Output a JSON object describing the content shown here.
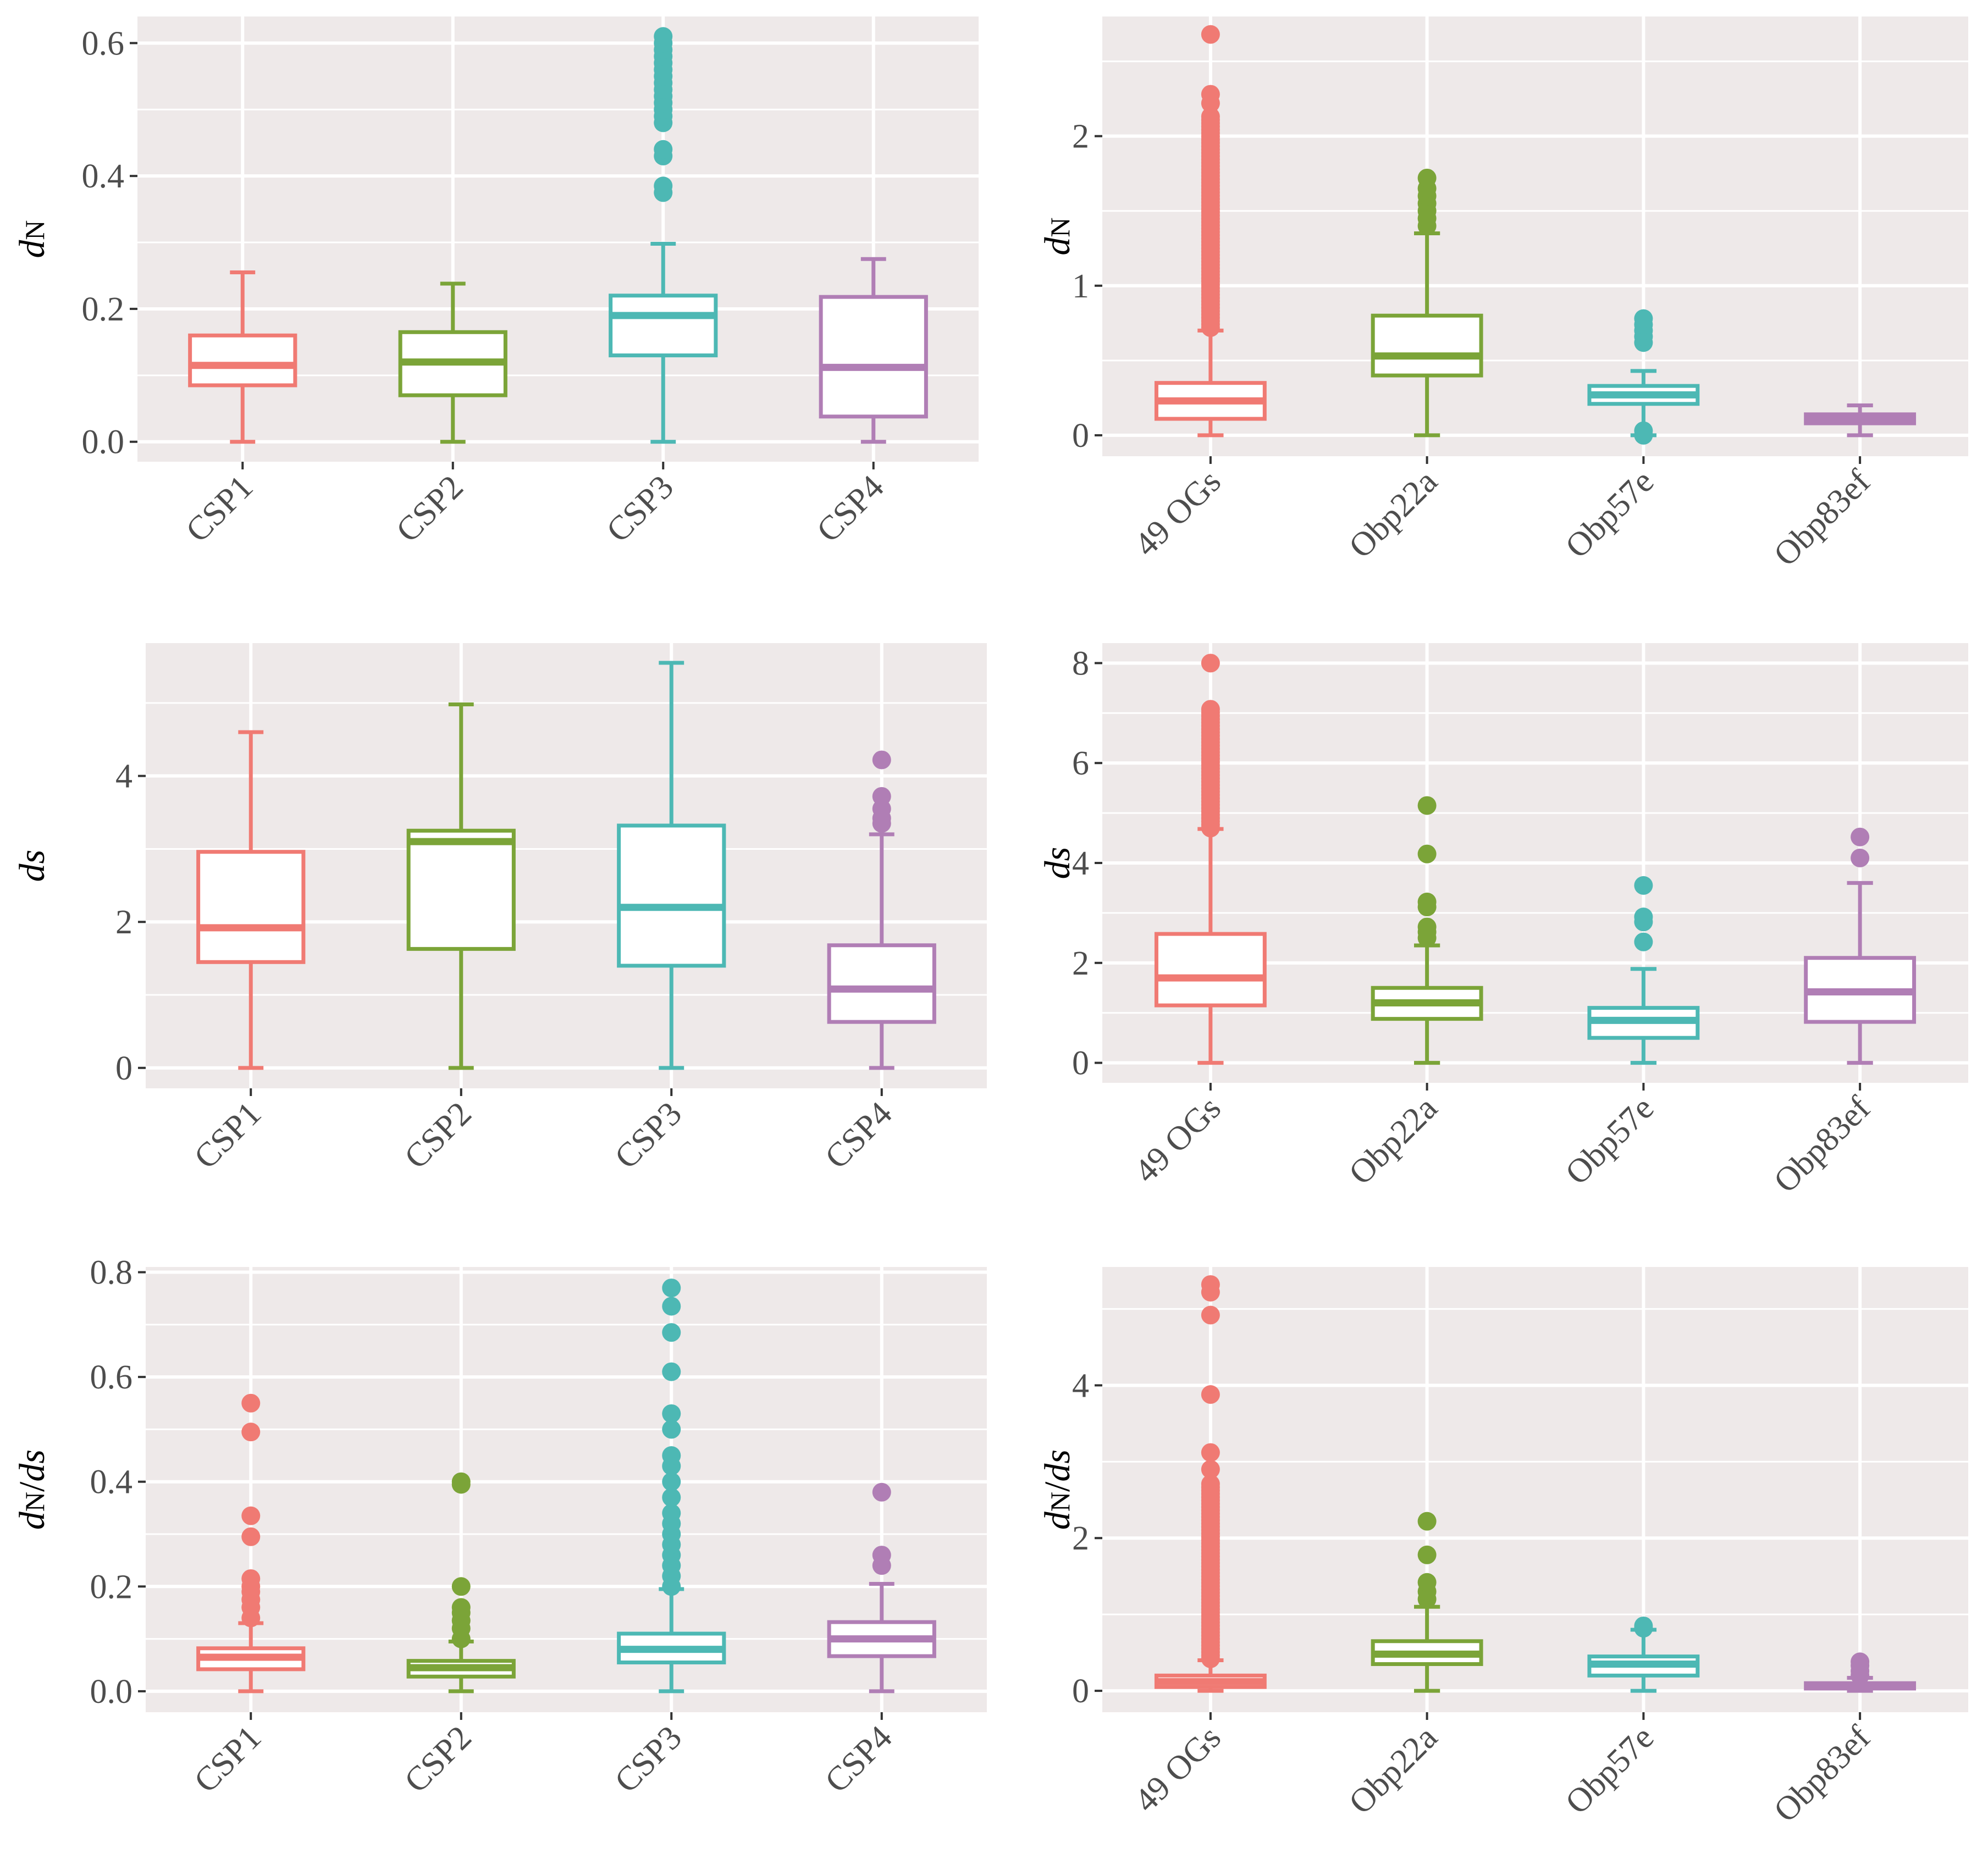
{
  "chart_data": [
    {
      "type": "boxplot",
      "panel": "top-left",
      "ylabel": "dN",
      "ylabel_parts": [
        {
          "text": "d",
          "style": "italic"
        },
        {
          "text": "N",
          "style": "sub"
        }
      ],
      "ylim": [
        -0.03,
        0.64
      ],
      "yticks": [
        0.0,
        0.2,
        0.4,
        0.6
      ],
      "ytick_labels": [
        "0.0",
        "0.2",
        "0.4",
        "0.6"
      ],
      "categories": [
        "CSP1",
        "CSP2",
        "CSP3",
        "CSP4"
      ],
      "colors": [
        "#F07A73",
        "#7BA438",
        "#4DB8B4",
        "#B07EB5"
      ],
      "boxes": [
        {
          "min": 0.0,
          "q1": 0.085,
          "median": 0.115,
          "q3": 0.16,
          "max": 0.255,
          "outliers": []
        },
        {
          "min": 0.0,
          "q1": 0.07,
          "median": 0.12,
          "q3": 0.165,
          "max": 0.238,
          "outliers": []
        },
        {
          "min": 0.0,
          "q1": 0.13,
          "median": 0.19,
          "q3": 0.22,
          "max": 0.298,
          "outliers": [
            0.375,
            0.385,
            0.43,
            0.44,
            0.48,
            0.49,
            0.5,
            0.51,
            0.52,
            0.53,
            0.54,
            0.55,
            0.56,
            0.57,
            0.58,
            0.59,
            0.6,
            0.61
          ]
        },
        {
          "min": 0.0,
          "q1": 0.038,
          "median": 0.112,
          "q3": 0.218,
          "max": 0.275,
          "outliers": []
        }
      ]
    },
    {
      "type": "boxplot",
      "panel": "top-right",
      "ylabel": "dN",
      "ylabel_parts": [
        {
          "text": "d",
          "style": "italic"
        },
        {
          "text": "N",
          "style": "sub"
        }
      ],
      "ylim": [
        -0.14,
        2.8
      ],
      "yticks": [
        0,
        1,
        2
      ],
      "ytick_labels": [
        "0",
        "1",
        "2"
      ],
      "categories": [
        "49 OGs",
        "Obp22a",
        "Obp57e",
        "Obp83ef"
      ],
      "colors": [
        "#F07A73",
        "#7BA438",
        "#4DB8B4",
        "#B07EB5"
      ],
      "boxes": [
        {
          "min": 0.0,
          "q1": 0.11,
          "median": 0.23,
          "q3": 0.35,
          "max": 0.7,
          "outliers": {
            "range": [
              0.72,
              2.15
            ],
            "extra": [
              2.22,
              2.28,
              2.68
            ]
          }
        },
        {
          "min": 0.0,
          "q1": 0.4,
          "median": 0.53,
          "q3": 0.8,
          "max": 1.35,
          "outliers": [
            1.4,
            1.45,
            1.5,
            1.55,
            1.6,
            1.65,
            1.72
          ]
        },
        {
          "min": 0.0,
          "q1": 0.21,
          "median": 0.27,
          "q3": 0.33,
          "max": 0.43,
          "outliers": [
            0.0,
            0.03,
            0.62,
            0.66,
            0.7,
            0.74,
            0.78
          ]
        },
        {
          "min": 0.0,
          "q1": 0.08,
          "median": 0.11,
          "q3": 0.14,
          "max": 0.2,
          "outliers": []
        }
      ]
    },
    {
      "type": "boxplot",
      "panel": "middle-left",
      "ylabel": "ds",
      "ylabel_parts": [
        {
          "text": "d",
          "style": "italic"
        },
        {
          "text": "s",
          "style": "italic"
        }
      ],
      "ylim": [
        -0.28,
        5.82
      ],
      "yticks": [
        0,
        2,
        4
      ],
      "ytick_labels": [
        "0",
        "2",
        "4"
      ],
      "categories": [
        "CSP1",
        "CSP2",
        "CSP3",
        "CSP4"
      ],
      "colors": [
        "#F07A73",
        "#7BA438",
        "#4DB8B4",
        "#B07EB5"
      ],
      "boxes": [
        {
          "min": 0.0,
          "q1": 1.45,
          "median": 1.92,
          "q3": 2.96,
          "max": 4.6,
          "outliers": []
        },
        {
          "min": 0.0,
          "q1": 1.63,
          "median": 3.1,
          "q3": 3.25,
          "max": 4.98,
          "outliers": []
        },
        {
          "min": 0.0,
          "q1": 1.4,
          "median": 2.2,
          "q3": 3.32,
          "max": 5.55,
          "outliers": []
        },
        {
          "min": 0.0,
          "q1": 0.63,
          "median": 1.08,
          "q3": 1.68,
          "max": 3.2,
          "outliers": [
            3.35,
            3.42,
            3.55,
            3.72,
            4.22
          ]
        }
      ]
    },
    {
      "type": "boxplot",
      "panel": "middle-right",
      "ylabel": "ds",
      "ylabel_parts": [
        {
          "text": "d",
          "style": "italic"
        },
        {
          "text": "s",
          "style": "italic"
        }
      ],
      "ylim": [
        -0.4,
        8.4
      ],
      "yticks": [
        0,
        2,
        4,
        6,
        8
      ],
      "ytick_labels": [
        "0",
        "2",
        "4",
        "6",
        "8"
      ],
      "categories": [
        "49 OGs",
        "Obp22a",
        "Obp57e",
        "Obp83ef"
      ],
      "colors": [
        "#F07A73",
        "#7BA438",
        "#4DB8B4",
        "#B07EB5"
      ],
      "boxes": [
        {
          "min": 0.0,
          "q1": 1.15,
          "median": 1.7,
          "q3": 2.58,
          "max": 4.68,
          "outliers": {
            "range": [
              4.7,
              7.1
            ],
            "extra": [
              8.0
            ]
          }
        },
        {
          "min": 0.0,
          "q1": 0.88,
          "median": 1.2,
          "q3": 1.5,
          "max": 2.35,
          "outliers": [
            2.5,
            2.62,
            2.72,
            3.12,
            3.22,
            4.18,
            5.15
          ]
        },
        {
          "min": 0.0,
          "q1": 0.5,
          "median": 0.85,
          "q3": 1.1,
          "max": 1.88,
          "outliers": [
            2.42,
            2.82,
            2.92,
            3.55
          ]
        },
        {
          "min": 0.0,
          "q1": 0.82,
          "median": 1.42,
          "q3": 2.1,
          "max": 3.6,
          "outliers": [
            4.1,
            4.52
          ]
        }
      ]
    },
    {
      "type": "boxplot",
      "panel": "bottom-left",
      "ylabel": "dN/ds",
      "ylabel_parts": [
        {
          "text": "d",
          "style": "italic"
        },
        {
          "text": "N",
          "style": "sub"
        },
        {
          "text": "/",
          "style": "normal"
        },
        {
          "text": "d",
          "style": "italic"
        },
        {
          "text": "s",
          "style": "italic"
        }
      ],
      "ylim": [
        -0.04,
        0.81
      ],
      "yticks": [
        0.0,
        0.2,
        0.4,
        0.6,
        0.8
      ],
      "ytick_labels": [
        "0.0",
        "0.2",
        "0.4",
        "0.6",
        "0.8"
      ],
      "categories": [
        "CSP1",
        "CSP2",
        "CSP3",
        "CSP4"
      ],
      "colors": [
        "#F07A73",
        "#7BA438",
        "#4DB8B4",
        "#B07EB5"
      ],
      "boxes": [
        {
          "min": 0.0,
          "q1": 0.042,
          "median": 0.065,
          "q3": 0.082,
          "max": 0.13,
          "outliers": [
            0.14,
            0.16,
            0.175,
            0.19,
            0.2,
            0.215,
            0.295,
            0.335,
            0.495,
            0.55
          ]
        },
        {
          "min": 0.0,
          "q1": 0.028,
          "median": 0.045,
          "q3": 0.058,
          "max": 0.095,
          "outliers": [
            0.1,
            0.12,
            0.135,
            0.15,
            0.16,
            0.2,
            0.395,
            0.4
          ]
        },
        {
          "min": 0.0,
          "q1": 0.055,
          "median": 0.08,
          "q3": 0.11,
          "max": 0.195,
          "outliers": [
            0.2,
            0.22,
            0.24,
            0.26,
            0.28,
            0.3,
            0.32,
            0.34,
            0.37,
            0.4,
            0.43,
            0.45,
            0.5,
            0.53,
            0.61,
            0.685,
            0.735,
            0.77
          ]
        },
        {
          "min": 0.0,
          "q1": 0.067,
          "median": 0.1,
          "q3": 0.132,
          "max": 0.205,
          "outliers": [
            0.24,
            0.26,
            0.38
          ]
        }
      ]
    },
    {
      "type": "boxplot",
      "panel": "bottom-right",
      "ylabel": "dN/ds",
      "ylabel_parts": [
        {
          "text": "d",
          "style": "italic"
        },
        {
          "text": "N",
          "style": "sub"
        },
        {
          "text": "/",
          "style": "normal"
        },
        {
          "text": "d",
          "style": "italic"
        },
        {
          "text": "s",
          "style": "italic"
        }
      ],
      "ylim": [
        -0.28,
        5.55
      ],
      "yticks": [
        0,
        2,
        4
      ],
      "ytick_labels": [
        "0",
        "2",
        "4"
      ],
      "categories": [
        "49 OGs",
        "Obp22a",
        "Obp57e",
        "Obp83ef"
      ],
      "colors": [
        "#F07A73",
        "#7BA438",
        "#4DB8B4",
        "#B07EB5"
      ],
      "boxes": [
        {
          "min": 0.0,
          "q1": 0.05,
          "median": 0.12,
          "q3": 0.2,
          "max": 0.4,
          "outliers": {
            "range": [
              0.42,
              2.75
            ],
            "extra": [
              2.9,
              3.12,
              3.88,
              4.92,
              5.22,
              5.32
            ]
          }
        },
        {
          "min": 0.0,
          "q1": 0.35,
          "median": 0.48,
          "q3": 0.65,
          "max": 1.1,
          "outliers": [
            1.2,
            1.3,
            1.42,
            1.78,
            2.22
          ]
        },
        {
          "min": 0.0,
          "q1": 0.2,
          "median": 0.35,
          "q3": 0.45,
          "max": 0.8,
          "outliers": [
            0.82,
            0.85
          ]
        },
        {
          "min": 0.0,
          "q1": 0.03,
          "median": 0.06,
          "q3": 0.1,
          "max": 0.17,
          "outliers": [
            0.2,
            0.26,
            0.33,
            0.38
          ]
        }
      ]
    }
  ]
}
